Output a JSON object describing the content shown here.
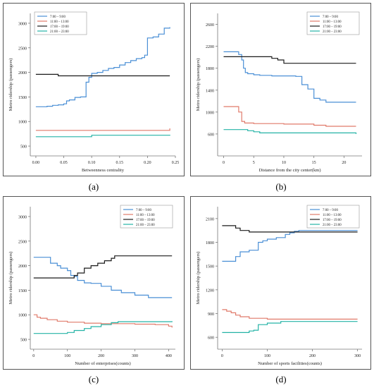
{
  "legend_labels": [
    "7:00 – 9:00",
    "11:00 – 13:00",
    "17:00 – 19:00",
    "21:00 – 23:00"
  ],
  "colors": [
    "#4a8fd6",
    "#e07a6a",
    "#1a1a1a",
    "#24b3a6"
  ],
  "chart_data": [
    {
      "panel": "(a)",
      "type": "line",
      "xlabel": "Betweenness centrality",
      "ylabel": "Metro ridership (passengers)",
      "xlim": [
        -0.01,
        0.25
      ],
      "ylim": [
        300,
        3200
      ],
      "xticks": [
        "0.00",
        "0.05",
        "0.10",
        "0.15",
        "0.20",
        "0.25"
      ],
      "xtick_values": [
        0,
        0.05,
        0.1,
        0.15,
        0.2,
        0.25
      ],
      "yticks": [
        "500",
        "1000",
        "1500",
        "2000",
        "2500",
        "3000"
      ],
      "ytick_values": [
        500,
        1000,
        1500,
        2000,
        2500,
        3000
      ],
      "legend_pos": "top-left",
      "series": [
        {
          "name": "7:00 – 9:00",
          "color": "#4a8fd6",
          "x": [
            0,
            0.01,
            0.02,
            0.03,
            0.04,
            0.05,
            0.055,
            0.06,
            0.07,
            0.08,
            0.09,
            0.095,
            0.1,
            0.11,
            0.12,
            0.13,
            0.14,
            0.15,
            0.16,
            0.17,
            0.18,
            0.19,
            0.195,
            0.2,
            0.21,
            0.22,
            0.23,
            0.24
          ],
          "values": [
            1300,
            1300,
            1310,
            1330,
            1340,
            1360,
            1420,
            1440,
            1490,
            1500,
            1800,
            1900,
            1980,
            2000,
            2040,
            2080,
            2100,
            2150,
            2200,
            2240,
            2280,
            2300,
            2350,
            2700,
            2720,
            2780,
            2900,
            2920
          ]
        },
        {
          "name": "11:00 – 13:00",
          "color": "#e07a6a",
          "x": [
            0,
            0.24
          ],
          "values": [
            820,
            860
          ]
        },
        {
          "name": "17:00 – 19:00",
          "color": "#1a1a1a",
          "x": [
            0,
            0.03,
            0.04,
            0.24
          ],
          "values": [
            1960,
            1960,
            1930,
            1930
          ]
        },
        {
          "name": "21:00 – 23:00",
          "color": "#24b3a6",
          "x": [
            0,
            0.05,
            0.1,
            0.24
          ],
          "values": [
            690,
            690,
            720,
            730
          ]
        }
      ]
    },
    {
      "panel": "(b)",
      "type": "line",
      "xlabel": "Distance from the city center(km)",
      "ylabel": "Metro ridership (passengers)",
      "xlim": [
        -1,
        23
      ],
      "ylim": [
        200,
        2800
      ],
      "xticks": [
        "0",
        "5",
        "10",
        "15",
        "20"
      ],
      "xtick_values": [
        0,
        5,
        10,
        15,
        20
      ],
      "yticks": [
        "600",
        "1000",
        "1400",
        "1800",
        "2200",
        "2600"
      ],
      "ytick_values": [
        600,
        1000,
        1400,
        1800,
        2200,
        2600
      ],
      "legend_pos": "top-right",
      "series": [
        {
          "name": "7:00 – 9:00",
          "color": "#4a8fd6",
          "x": [
            0,
            2,
            2.5,
            3,
            3.3,
            3.6,
            4,
            5,
            6,
            8,
            10,
            12,
            13,
            14,
            15,
            16,
            17,
            20,
            22
          ],
          "values": [
            2100,
            2100,
            2050,
            1950,
            1800,
            1720,
            1700,
            1680,
            1670,
            1660,
            1660,
            1650,
            1500,
            1420,
            1250,
            1220,
            1180,
            1180,
            1180
          ]
        },
        {
          "name": "11:00 – 13:00",
          "color": "#e07a6a",
          "x": [
            0,
            2,
            2.5,
            3,
            3.5,
            5,
            10,
            15,
            17,
            22
          ],
          "values": [
            1100,
            1100,
            1000,
            830,
            800,
            790,
            780,
            760,
            740,
            740
          ]
        },
        {
          "name": "17:00 – 19:00",
          "color": "#1a1a1a",
          "x": [
            0,
            7,
            8,
            9,
            10,
            22
          ],
          "values": [
            2010,
            2010,
            1980,
            1950,
            1890,
            1890
          ]
        },
        {
          "name": "21:00 – 23:00",
          "color": "#24b3a6",
          "x": [
            0,
            3,
            4,
            5,
            6,
            22
          ],
          "values": [
            680,
            680,
            660,
            640,
            620,
            600
          ]
        }
      ]
    },
    {
      "panel": "(c)",
      "type": "line",
      "xlabel": "Number of enterprises(counts)",
      "ylabel": "Metro ridership (passengers)",
      "xlim": [
        -10,
        420
      ],
      "ylim": [
        300,
        3200
      ],
      "xticks": [
        "0",
        "100",
        "200",
        "300",
        "400"
      ],
      "xtick_values": [
        0,
        100,
        200,
        300,
        400
      ],
      "yticks": [
        "500",
        "1000",
        "1500",
        "2000",
        "2500",
        "3000"
      ],
      "ytick_values": [
        500,
        1000,
        1500,
        2000,
        2500,
        3000
      ],
      "legend_pos": "top-right",
      "series": [
        {
          "name": "7:00 – 9:00",
          "color": "#4a8fd6",
          "x": [
            0,
            40,
            50,
            70,
            80,
            100,
            110,
            120,
            130,
            150,
            170,
            200,
            230,
            260,
            300,
            340,
            410
          ],
          "values": [
            2170,
            2170,
            2050,
            2000,
            1950,
            1900,
            1800,
            1780,
            1700,
            1650,
            1640,
            1580,
            1500,
            1450,
            1400,
            1350,
            1350
          ]
        },
        {
          "name": "11:00 – 13:00",
          "color": "#e07a6a",
          "x": [
            0,
            10,
            20,
            40,
            70,
            100,
            150,
            200,
            250,
            300,
            360,
            400,
            410
          ],
          "values": [
            1000,
            950,
            930,
            900,
            870,
            850,
            830,
            820,
            820,
            810,
            800,
            770,
            740
          ]
        },
        {
          "name": "17:00 – 19:00",
          "color": "#1a1a1a",
          "x": [
            0,
            100,
            120,
            130,
            150,
            170,
            190,
            210,
            230,
            240,
            410
          ],
          "values": [
            1750,
            1750,
            1800,
            1850,
            1950,
            2000,
            2050,
            2100,
            2150,
            2200,
            2200
          ]
        },
        {
          "name": "21:00 – 23:00",
          "color": "#24b3a6",
          "x": [
            0,
            90,
            100,
            120,
            150,
            170,
            200,
            230,
            250,
            410
          ],
          "values": [
            620,
            620,
            640,
            680,
            720,
            760,
            800,
            840,
            860,
            870
          ]
        }
      ]
    },
    {
      "panel": "(d)",
      "type": "line",
      "xlabel": "Number of sports facilities(counts)",
      "ylabel": "Metro ridership (passengers)",
      "xlim": [
        -10,
        310
      ],
      "ylim": [
        450,
        2250
      ],
      "xticks": [
        "0",
        "100",
        "200",
        "300"
      ],
      "xtick_values": [
        0,
        100,
        200,
        300
      ],
      "yticks": [
        "600",
        "900",
        "1200",
        "1500",
        "1800",
        "2100"
      ],
      "ytick_values": [
        600,
        900,
        1200,
        1500,
        1800,
        2100
      ],
      "legend_pos": "top-right",
      "series": [
        {
          "name": "7:00 – 9:00",
          "color": "#4a8fd6",
          "x": [
            0,
            20,
            30,
            40,
            60,
            80,
            90,
            100,
            120,
            140,
            150,
            160,
            170,
            300
          ],
          "values": [
            1560,
            1560,
            1620,
            1680,
            1700,
            1800,
            1820,
            1840,
            1860,
            1900,
            1920,
            1940,
            1950,
            1950
          ]
        },
        {
          "name": "11:00 – 13:00",
          "color": "#e07a6a",
          "x": [
            0,
            10,
            20,
            30,
            40,
            60,
            100,
            200,
            300
          ],
          "values": [
            950,
            930,
            910,
            880,
            860,
            840,
            830,
            830,
            830
          ]
        },
        {
          "name": "17:00 – 19:00",
          "color": "#1a1a1a",
          "x": [
            0,
            20,
            30,
            40,
            60,
            300
          ],
          "values": [
            2010,
            2010,
            1980,
            1950,
            1930,
            1930
          ]
        },
        {
          "name": "21:00 – 23:00",
          "color": "#24b3a6",
          "x": [
            0,
            40,
            60,
            70,
            80,
            100,
            130,
            300
          ],
          "values": [
            660,
            660,
            680,
            690,
            760,
            780,
            800,
            800
          ]
        }
      ]
    }
  ]
}
